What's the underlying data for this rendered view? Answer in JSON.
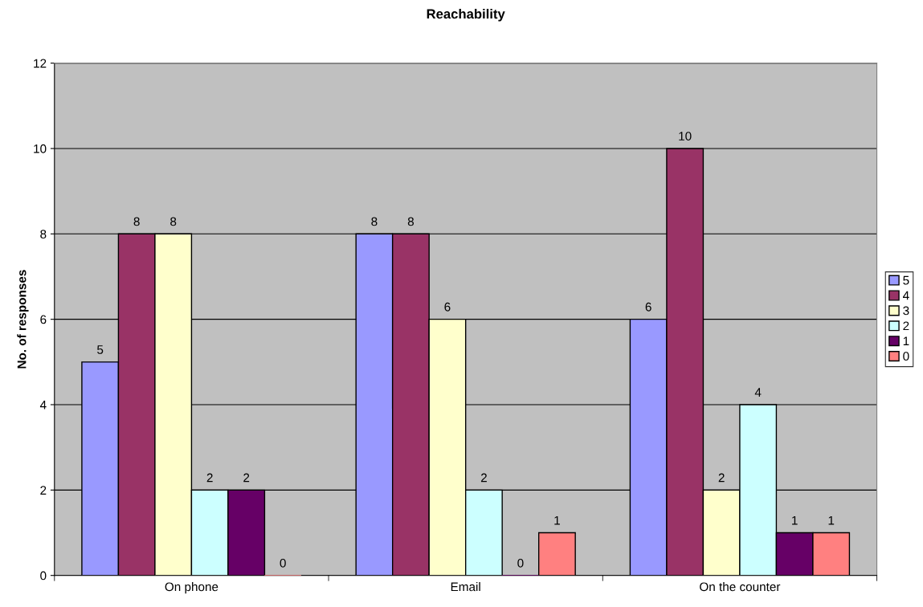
{
  "chart_data": {
    "type": "bar",
    "title": "Reachability",
    "ylabel": "No. of responses",
    "categories": [
      "On phone",
      "Email",
      "On the counter"
    ],
    "series": [
      {
        "name": "5",
        "color": "#9999ff",
        "values": [
          5,
          8,
          6
        ]
      },
      {
        "name": "4",
        "color": "#993366",
        "values": [
          8,
          8,
          10
        ]
      },
      {
        "name": "3",
        "color": "#ffffcc",
        "values": [
          8,
          6,
          2
        ]
      },
      {
        "name": "2",
        "color": "#ccffff",
        "values": [
          2,
          2,
          4
        ]
      },
      {
        "name": "1",
        "color": "#660066",
        "values": [
          2,
          0,
          1
        ]
      },
      {
        "name": "0",
        "color": "#ff8080",
        "values": [
          0,
          1,
          1
        ]
      }
    ],
    "ylim": [
      0,
      12
    ],
    "yticks": [
      0,
      2,
      4,
      6,
      8,
      10,
      12
    ],
    "grid": "y",
    "legend": "right",
    "data_labels": true
  }
}
